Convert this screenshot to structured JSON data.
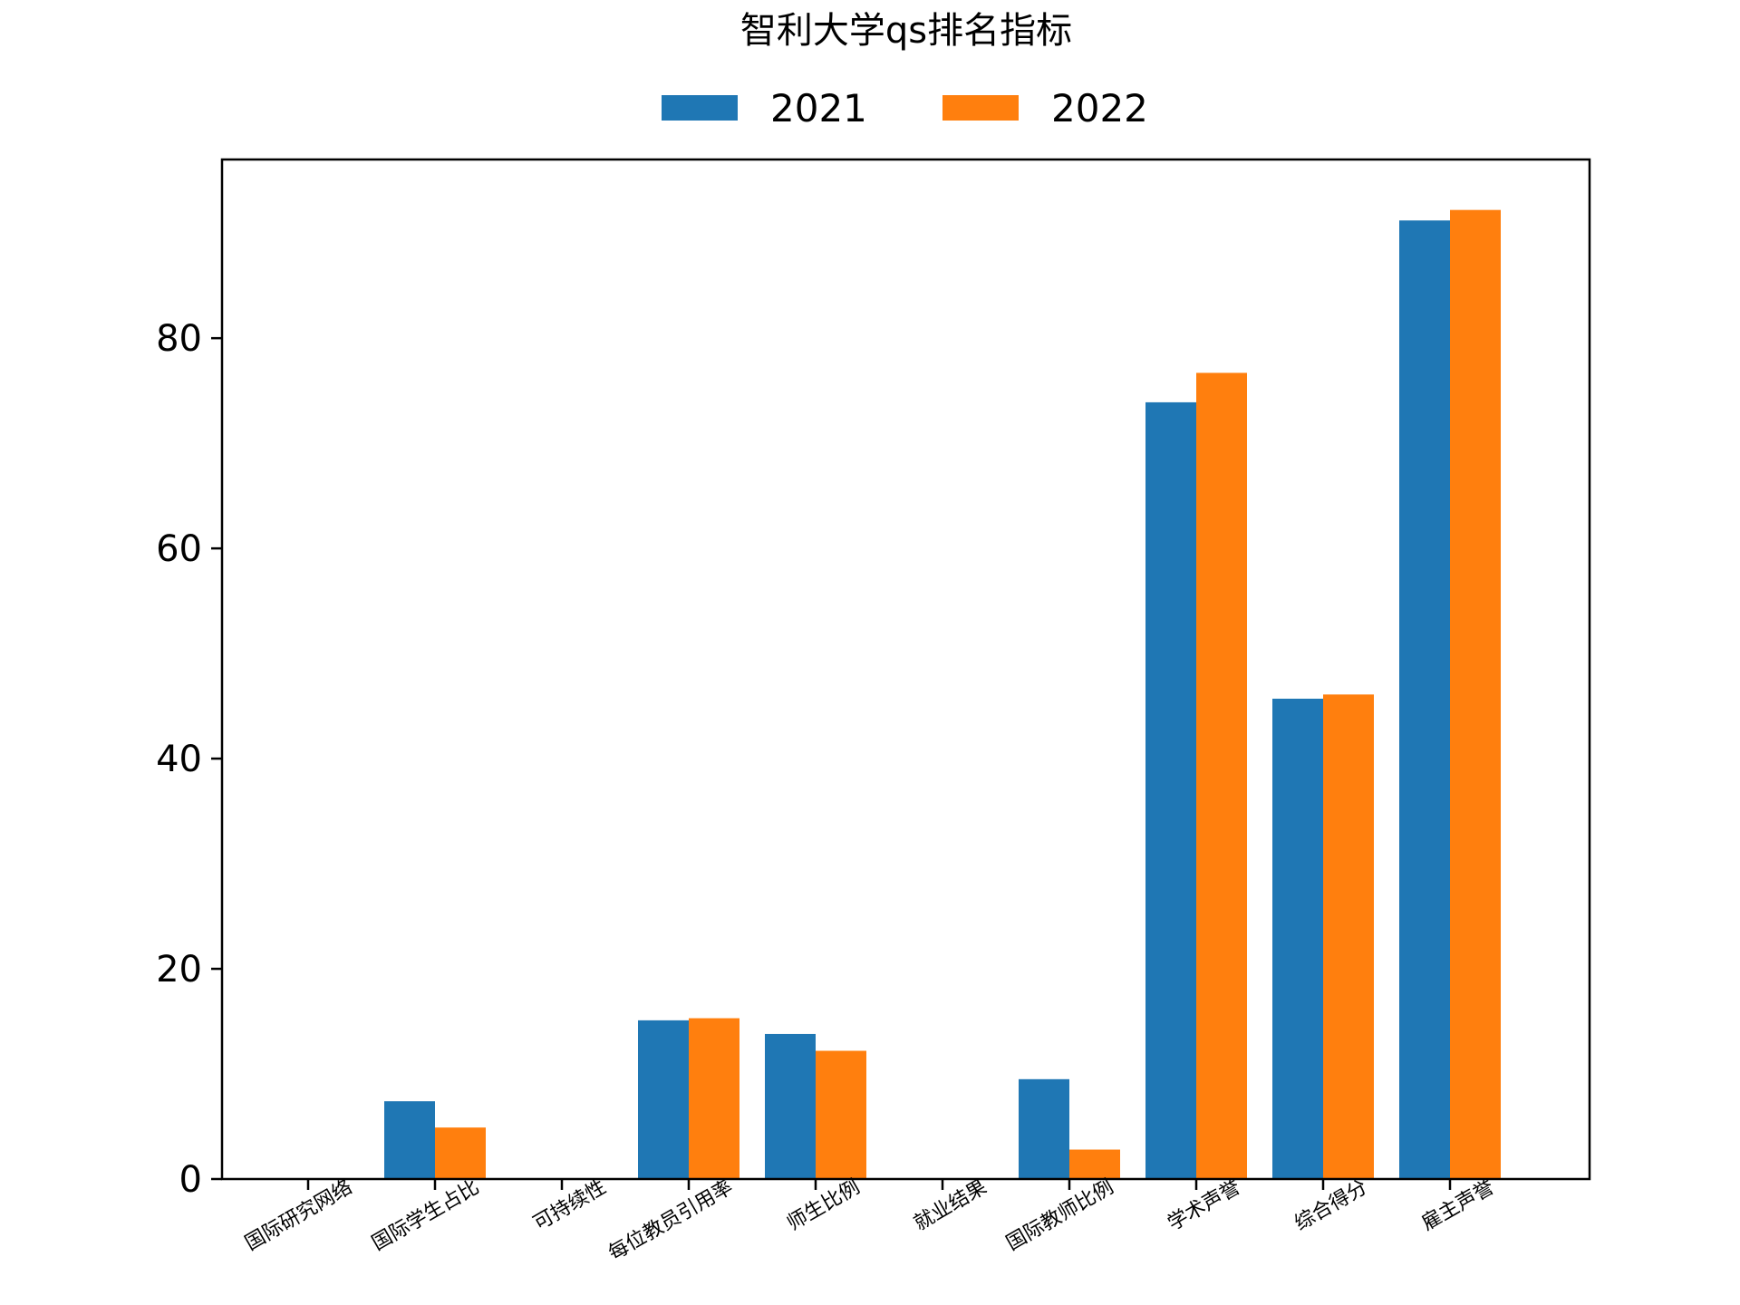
{
  "chart_data": {
    "type": "bar",
    "title": "智利大学qs排名指标",
    "xlabel": "",
    "ylabel": "",
    "categories": [
      "国际研究网络",
      "国际学生占比",
      "可持续性",
      "每位教员引用率",
      "师生比例",
      "就业结果",
      "国际教师比例",
      "学术声誉",
      "综合得分",
      "雇主声誉"
    ],
    "series": [
      {
        "name": "2021",
        "color": "#1f77b4",
        "values": [
          0,
          7.4,
          0,
          15.1,
          13.8,
          0,
          9.5,
          73.9,
          45.7,
          91.2
        ]
      },
      {
        "name": "2022",
        "color": "#ff7f0e",
        "values": [
          0,
          4.9,
          0,
          15.3,
          12.2,
          0,
          2.8,
          76.7,
          46.1,
          92.2
        ]
      }
    ],
    "ylim": [
      0,
      97
    ],
    "yticks": [
      0,
      20,
      40,
      60,
      80
    ],
    "legend": "top-center",
    "grid": false
  }
}
